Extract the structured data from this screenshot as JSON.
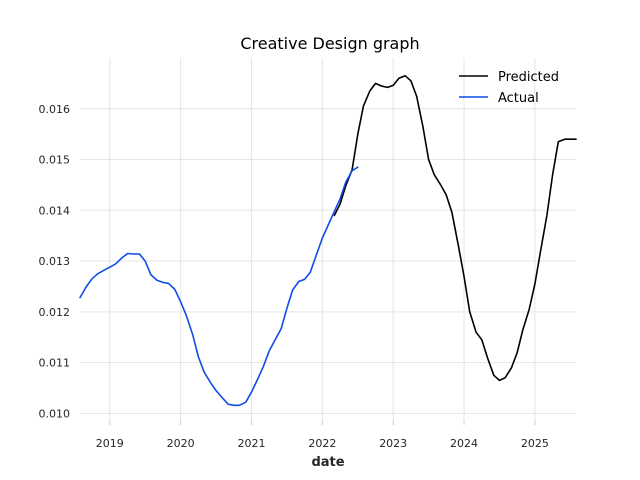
{
  "chart_data": {
    "type": "line",
    "title": "Creative Design graph",
    "xlabel": "date",
    "ylabel": "",
    "xlim": [
      2018.58,
      2025.58
    ],
    "ylim": [
      0.00985,
      0.017
    ],
    "x_ticks": [
      2019,
      2020,
      2021,
      2022,
      2023,
      2024,
      2025
    ],
    "x_tick_labels": [
      "2019",
      "2020",
      "2021",
      "2022",
      "2023",
      "2024",
      "2025"
    ],
    "y_ticks": [
      0.01,
      0.011,
      0.012,
      0.013,
      0.014,
      0.015,
      0.016
    ],
    "y_tick_labels": [
      "0.010",
      "0.011",
      "0.012",
      "0.013",
      "0.014",
      "0.015",
      "0.016"
    ],
    "grid": true,
    "legend_position": "top-right",
    "series": [
      {
        "name": "Predicted",
        "color": "#000000",
        "x": [
          2022.17,
          2022.25,
          2022.33,
          2022.42,
          2022.5,
          2022.58,
          2022.67,
          2022.75,
          2022.83,
          2022.92,
          2023.0,
          2023.08,
          2023.17,
          2023.25,
          2023.33,
          2023.42,
          2023.5,
          2023.58,
          2023.67,
          2023.75,
          2023.83,
          2023.92,
          2024.0,
          2024.08,
          2024.17,
          2024.25,
          2024.33,
          2024.42,
          2024.5,
          2024.58,
          2024.67,
          2024.75,
          2024.83,
          2024.92,
          2025.0,
          2025.08,
          2025.17,
          2025.25,
          2025.33,
          2025.42,
          2025.5,
          2025.58
        ],
        "values": [
          0.0139,
          0.01412,
          0.01448,
          0.0148,
          0.0155,
          0.01605,
          0.01635,
          0.0165,
          0.01645,
          0.01642,
          0.01646,
          0.0166,
          0.01665,
          0.01655,
          0.01625,
          0.01565,
          0.015,
          0.0147,
          0.0145,
          0.0143,
          0.01395,
          0.0133,
          0.0127,
          0.012,
          0.0116,
          0.01145,
          0.0111,
          0.01075,
          0.01065,
          0.0107,
          0.0109,
          0.0112,
          0.01165,
          0.01205,
          0.01255,
          0.0132,
          0.0139,
          0.0147,
          0.01535,
          0.0154,
          0.0154,
          0.0154
        ]
      },
      {
        "name": "Actual",
        "color": "#0f4de8",
        "x": [
          2018.58,
          2018.67,
          2018.75,
          2018.83,
          2018.92,
          2019.0,
          2019.08,
          2019.17,
          2019.25,
          2019.33,
          2019.42,
          2019.5,
          2019.58,
          2019.67,
          2019.75,
          2019.83,
          2019.92,
          2020.0,
          2020.08,
          2020.17,
          2020.25,
          2020.33,
          2020.42,
          2020.5,
          2020.58,
          2020.67,
          2020.75,
          2020.83,
          2020.92,
          2021.0,
          2021.08,
          2021.17,
          2021.25,
          2021.33,
          2021.42,
          2021.5,
          2021.58,
          2021.67,
          2021.75,
          2021.83,
          2021.92,
          2022.0,
          2022.08,
          2022.17,
          2022.25,
          2022.33,
          2022.42,
          2022.5
        ],
        "values": [
          0.01228,
          0.0125,
          0.01265,
          0.01275,
          0.01282,
          0.01288,
          0.01294,
          0.01306,
          0.01315,
          0.01314,
          0.01314,
          0.013,
          0.01273,
          0.01262,
          0.01258,
          0.01256,
          0.01244,
          0.0122,
          0.01193,
          0.01155,
          0.01112,
          0.01082,
          0.01061,
          0.01045,
          0.01032,
          0.01018,
          0.01016,
          0.01016,
          0.01022,
          0.01042,
          0.01065,
          0.01093,
          0.01123,
          0.01144,
          0.01167,
          0.01207,
          0.01243,
          0.0126,
          0.01264,
          0.01278,
          0.01314,
          0.01345,
          0.0137,
          0.01398,
          0.01422,
          0.01455,
          0.01478,
          0.01485
        ]
      }
    ]
  }
}
